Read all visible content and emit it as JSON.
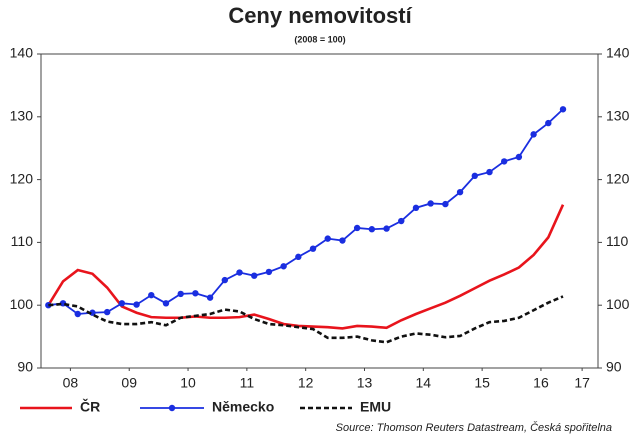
{
  "chart_data": {
    "type": "line",
    "title": "Ceny nemovitostí",
    "subtitle": "(2008 = 100)",
    "source": "Source: Thomson Reuters Datastream, Česká spořitelna",
    "x": [
      2008.125,
      2008.375,
      2008.625,
      2008.875,
      2009.125,
      2009.375,
      2009.625,
      2009.875,
      2010.125,
      2010.375,
      2010.625,
      2010.875,
      2011.125,
      2011.375,
      2011.625,
      2011.875,
      2012.125,
      2012.375,
      2012.625,
      2012.875,
      2013.125,
      2013.375,
      2013.625,
      2013.875,
      2014.125,
      2014.375,
      2014.625,
      2014.875,
      2015.125,
      2015.375,
      2015.625,
      2015.875,
      2016.125,
      2016.375,
      2016.625,
      2016.875
    ],
    "series": [
      {
        "name": "ČR",
        "color": "#e8141c",
        "linestyle": "solid",
        "marker": "none",
        "values": [
          100,
          103.8,
          105.6,
          105,
          102.8,
          99.8,
          98.8,
          98.1,
          98.0,
          98.0,
          98.2,
          98.0,
          98.0,
          98.1,
          98.5,
          97.8,
          97.0,
          96.7,
          96.6,
          96.5,
          96.3,
          96.7,
          96.6,
          96.4,
          97.6,
          98.6,
          99.5,
          100.4,
          101.5,
          102.7,
          103.9,
          104.9,
          106.0,
          108.0,
          110.8,
          116.0
        ]
      },
      {
        "name": "Německo",
        "color": "#1a2ee0",
        "linestyle": "solid",
        "marker": "circle",
        "values": [
          100,
          100.3,
          98.6,
          98.8,
          98.9,
          100.3,
          100.1,
          101.6,
          100.3,
          101.8,
          101.9,
          101.2,
          104.0,
          105.2,
          104.7,
          105.3,
          106.2,
          107.7,
          109.0,
          110.6,
          110.3,
          112.3,
          112.1,
          112.2,
          113.4,
          115.5,
          116.2,
          116.1,
          118.0,
          120.6,
          121.2,
          122.9,
          123.6,
          127.2,
          129.0,
          131.2
        ]
      },
      {
        "name": "EMU",
        "color": "#111111",
        "linestyle": "dashed",
        "marker": "none",
        "values": [
          100,
          100.2,
          99.8,
          98.5,
          97.4,
          97.0,
          97.0,
          97.3,
          96.8,
          98.0,
          98.3,
          98.6,
          99.3,
          99.0,
          97.8,
          97.0,
          96.8,
          96.5,
          96.2,
          94.8,
          94.8,
          95.0,
          94.4,
          94.1,
          95.0,
          95.5,
          95.3,
          94.9,
          95.1,
          96.3,
          97.3,
          97.5,
          98.0,
          99.2,
          100.4,
          101.4
        ]
      }
    ],
    "xlim": [
      2008,
      2017.47
    ],
    "xticks": [
      {
        "value": 2008.5,
        "label": "08"
      },
      {
        "value": 2009.5,
        "label": "09"
      },
      {
        "value": 2010.5,
        "label": "10"
      },
      {
        "value": 2011.5,
        "label": "11"
      },
      {
        "value": 2012.5,
        "label": "12"
      },
      {
        "value": 2013.5,
        "label": "13"
      },
      {
        "value": 2014.5,
        "label": "14"
      },
      {
        "value": 2015.5,
        "label": "15"
      },
      {
        "value": 2016.5,
        "label": "16"
      },
      {
        "value": 2017.2,
        "label": "17"
      }
    ],
    "ylim": [
      90,
      140
    ],
    "yticks": [
      90,
      100,
      110,
      120,
      130,
      140
    ],
    "y2lim": [
      90,
      140
    ],
    "y2ticks": [
      90,
      100,
      110,
      120,
      130,
      140
    ],
    "grid": false,
    "legend": "bottom"
  }
}
